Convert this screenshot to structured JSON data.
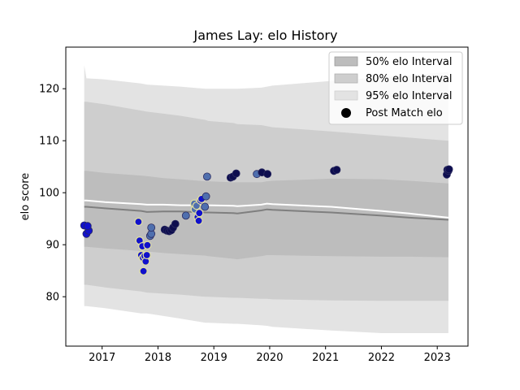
{
  "chart_data": {
    "type": "scatter",
    "title": "James Lay: elo History",
    "xlabel": "",
    "ylabel": "elo score",
    "xlim": [
      2016.35,
      2023.55
    ],
    "ylim": [
      70.5,
      128
    ],
    "x_ticks": [
      2017,
      2018,
      2019,
      2020,
      2021,
      2022,
      2023
    ],
    "x_tick_labels": [
      "2017",
      "2018",
      "2019",
      "2020",
      "2021",
      "2022",
      "2023"
    ],
    "y_ticks": [
      80,
      90,
      100,
      110,
      120
    ],
    "y_tick_labels": [
      "80",
      "90",
      "100",
      "110",
      "120"
    ],
    "legend": {
      "position": "top-right",
      "entries": [
        "50% elo Interval",
        "80% elo Interval",
        "95% elo Interval",
        "Post Match elo"
      ]
    },
    "colors": {
      "band_95": "#e3e3e3",
      "band_80": "#cecece",
      "band_50": "#bdbdbd",
      "prior_line": "#7f7f7f",
      "mean_line": "#ffffff",
      "point_high": "#0d0d4f",
      "point_low": "#1111cc",
      "point_mid": "#4f6fae",
      "edge_light": "#e0e0a0",
      "edge_dark": "#2a2a60"
    },
    "intervals": {
      "x": [
        2016.68,
        2016.72,
        2017.05,
        2017.7,
        2017.8,
        2018.1,
        2018.4,
        2018.85,
        2018.9,
        2019.35,
        2019.42,
        2019.85,
        2019.95,
        2020.05,
        2021.1,
        2022.0,
        2022.5,
        2023.2
      ],
      "upper95": [
        124.5,
        122.0,
        121.8,
        121.0,
        120.8,
        120.6,
        120.4,
        120.0,
        120.0,
        120.0,
        120.0,
        120.2,
        120.4,
        120.6,
        121.5,
        122.2,
        122.6,
        123.2
      ],
      "lower95": [
        78.2,
        78.2,
        77.8,
        76.8,
        76.8,
        76.3,
        75.8,
        75.0,
        75.0,
        74.8,
        74.8,
        74.5,
        74.4,
        74.2,
        73.5,
        73.0,
        73.0,
        73.0
      ],
      "upper80": [
        117.5,
        117.5,
        117.0,
        115.8,
        115.6,
        115.2,
        114.8,
        114.0,
        113.8,
        113.4,
        113.2,
        113.0,
        112.8,
        112.6,
        111.8,
        111.0,
        110.6,
        110.0
      ],
      "lower80": [
        82.3,
        82.3,
        81.8,
        81.0,
        80.8,
        80.6,
        80.4,
        80.0,
        80.0,
        79.8,
        79.8,
        79.6,
        79.6,
        79.5,
        79.3,
        79.2,
        79.2,
        79.2
      ],
      "upper50": [
        104.2,
        104.2,
        103.8,
        103.3,
        103.2,
        102.8,
        102.6,
        102.2,
        102.2,
        102.0,
        102.0,
        102.0,
        102.2,
        102.3,
        102.7,
        102.6,
        102.3,
        101.8
      ],
      "lower50": [
        89.6,
        89.6,
        89.3,
        88.8,
        88.7,
        88.4,
        88.2,
        87.9,
        87.8,
        87.3,
        87.2,
        87.8,
        88.0,
        88.0,
        87.8,
        87.7,
        87.7,
        87.6
      ],
      "prior": [
        97.3,
        97.3,
        97.0,
        96.5,
        96.3,
        96.4,
        96.4,
        96.2,
        96.2,
        96.1,
        96.0,
        96.6,
        96.8,
        96.7,
        96.2,
        95.6,
        95.2,
        94.8
      ],
      "mean": [
        98.5,
        98.5,
        98.2,
        97.8,
        97.7,
        97.7,
        97.6,
        97.6,
        97.6,
        97.5,
        97.4,
        97.7,
        97.9,
        97.8,
        97.3,
        96.5,
        96.0,
        95.2
      ]
    },
    "points": [
      {
        "x": 2016.68,
        "y": 93.7,
        "c": "low"
      },
      {
        "x": 2016.72,
        "y": 92.1,
        "c": "low"
      },
      {
        "x": 2016.76,
        "y": 92.7,
        "c": "low"
      },
      {
        "x": 2016.74,
        "y": 93.6,
        "c": "low"
      },
      {
        "x": 2017.65,
        "y": 94.4,
        "c": "low",
        "e": "light"
      },
      {
        "x": 2017.67,
        "y": 90.8,
        "c": "low",
        "e": "light"
      },
      {
        "x": 2017.7,
        "y": 88.0,
        "c": "low",
        "e": "light"
      },
      {
        "x": 2017.72,
        "y": 89.7,
        "c": "low",
        "e": "light"
      },
      {
        "x": 2017.73,
        "y": 87.5,
        "c": "low",
        "e": "light"
      },
      {
        "x": 2017.74,
        "y": 84.9,
        "c": "low",
        "e": "light"
      },
      {
        "x": 2017.76,
        "y": 87.8,
        "c": "low",
        "e": "light"
      },
      {
        "x": 2017.78,
        "y": 86.8,
        "c": "low",
        "e": "light"
      },
      {
        "x": 2017.8,
        "y": 88.0,
        "c": "low",
        "e": "light"
      },
      {
        "x": 2017.81,
        "y": 89.9,
        "c": "low",
        "e": "light"
      },
      {
        "x": 2017.86,
        "y": 91.7,
        "c": "mid"
      },
      {
        "x": 2017.88,
        "y": 92.1,
        "c": "mid"
      },
      {
        "x": 2017.88,
        "y": 93.3,
        "c": "mid"
      },
      {
        "x": 2018.12,
        "y": 92.9,
        "c": "high"
      },
      {
        "x": 2018.16,
        "y": 92.7,
        "c": "high"
      },
      {
        "x": 2018.2,
        "y": 92.6,
        "c": "high"
      },
      {
        "x": 2018.24,
        "y": 92.8,
        "c": "high"
      },
      {
        "x": 2018.27,
        "y": 93.3,
        "c": "high"
      },
      {
        "x": 2018.31,
        "y": 94.0,
        "c": "high"
      },
      {
        "x": 2018.5,
        "y": 95.6,
        "c": "mid"
      },
      {
        "x": 2018.65,
        "y": 97.9,
        "c": "mid",
        "e": "light"
      },
      {
        "x": 2018.66,
        "y": 96.8,
        "c": "mid",
        "e": "light"
      },
      {
        "x": 2018.69,
        "y": 97.5,
        "c": "mid",
        "e": "light"
      },
      {
        "x": 2018.71,
        "y": 95.3,
        "c": "low",
        "e": "light"
      },
      {
        "x": 2018.73,
        "y": 94.6,
        "c": "low",
        "e": "light"
      },
      {
        "x": 2018.74,
        "y": 96.1,
        "c": "low",
        "e": "light"
      },
      {
        "x": 2018.76,
        "y": 98.5,
        "c": "low",
        "e": "light"
      },
      {
        "x": 2018.78,
        "y": 98.8,
        "c": "low",
        "e": "light"
      },
      {
        "x": 2018.84,
        "y": 97.3,
        "c": "mid"
      },
      {
        "x": 2018.86,
        "y": 99.3,
        "c": "mid"
      },
      {
        "x": 2018.88,
        "y": 103.1,
        "c": "mid"
      },
      {
        "x": 2019.3,
        "y": 102.9,
        "c": "high"
      },
      {
        "x": 2019.34,
        "y": 103.1,
        "c": "high"
      },
      {
        "x": 2019.4,
        "y": 103.7,
        "c": "high"
      },
      {
        "x": 2019.77,
        "y": 103.6,
        "c": "mid"
      },
      {
        "x": 2019.86,
        "y": 103.9,
        "c": "high"
      },
      {
        "x": 2019.96,
        "y": 103.6,
        "c": "high"
      },
      {
        "x": 2021.15,
        "y": 104.2,
        "c": "high"
      },
      {
        "x": 2021.2,
        "y": 104.4,
        "c": "high"
      },
      {
        "x": 2023.17,
        "y": 103.5,
        "c": "high"
      },
      {
        "x": 2023.18,
        "y": 104.4,
        "c": "high"
      },
      {
        "x": 2023.2,
        "y": 104.2,
        "c": "high"
      },
      {
        "x": 2023.21,
        "y": 104.5,
        "c": "high"
      }
    ]
  }
}
